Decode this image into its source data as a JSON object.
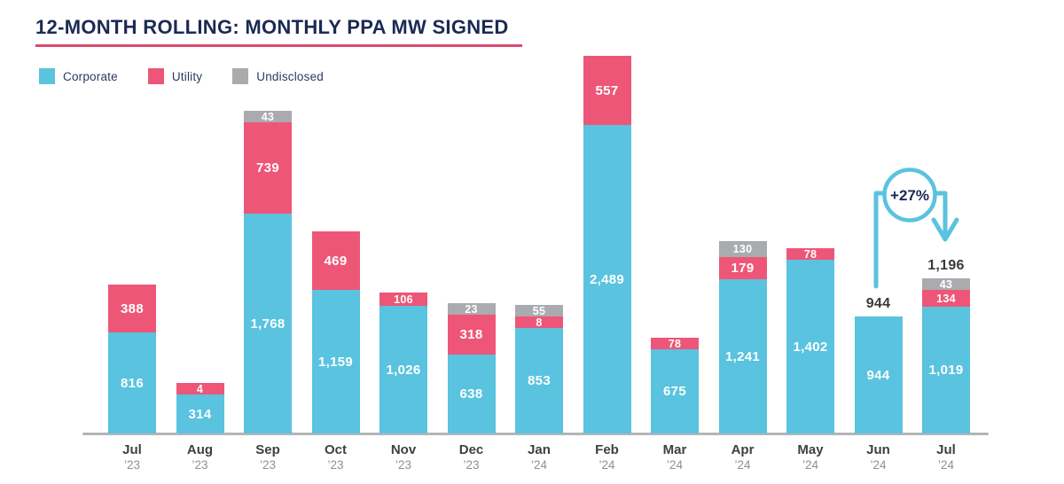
{
  "title": "12-MONTH ROLLING: MONTHLY PPA MW SIGNED",
  "legend": {
    "items": [
      {
        "label": "Corporate",
        "color": "#5AC3DF"
      },
      {
        "label": "Utility",
        "color": "#EE5677"
      },
      {
        "label": "Undisclosed",
        "color": "#A9ABAE"
      }
    ]
  },
  "annotation": {
    "label": "+27%",
    "from": "Jun ’24",
    "to": "Jul ’24"
  },
  "colors": {
    "title": "#1B2A55",
    "title_underline": "#D84A6E",
    "axis_line": "#B5B5B8",
    "corporate": "#5AC3DF",
    "utility": "#EE5677",
    "undisclosed": "#A9ABAE",
    "annotation_blue": "#5AC3DF",
    "annotation_text": "#1B2A55",
    "total_label": "#3A3A3C"
  },
  "chart_data": {
    "type": "bar",
    "stacked": true,
    "title": "12-MONTH ROLLING: MONTHLY PPA MW SIGNED",
    "unit": "MW",
    "grid": false,
    "legend_position": "top-left",
    "value_labels": "inside segments, white bold",
    "categories": [
      "Jul ’23",
      "Aug ’23",
      "Sep ’23",
      "Oct ’23",
      "Nov ’23",
      "Dec ’23",
      "Jan ’24",
      "Feb ’24",
      "Mar ’24",
      "Apr ’24",
      "May ’24",
      "Jun ’24",
      "Jul ’24"
    ],
    "series": [
      {
        "name": "Corporate",
        "color": "#5AC3DF",
        "values": [
          816,
          314,
          1768,
          1159,
          1026,
          638,
          853,
          2489,
          675,
          1241,
          1402,
          944,
          1019
        ]
      },
      {
        "name": "Utility",
        "color": "#EE5677",
        "values": [
          388,
          4,
          739,
          469,
          106,
          318,
          8,
          557,
          78,
          179,
          78,
          0,
          134
        ]
      },
      {
        "name": "Undisclosed",
        "color": "#A9ABAE",
        "values": [
          0,
          0,
          43,
          0,
          0,
          23,
          55,
          0,
          0,
          130,
          0,
          0,
          43
        ]
      }
    ],
    "totals_shown": [
      {
        "category": "Jun ’24",
        "label": "944"
      },
      {
        "category": "Jul ’24",
        "label": "1,196"
      }
    ],
    "annotation": {
      "text": "+27%",
      "from": "Jun ’24",
      "to": "Jul ’24"
    }
  }
}
